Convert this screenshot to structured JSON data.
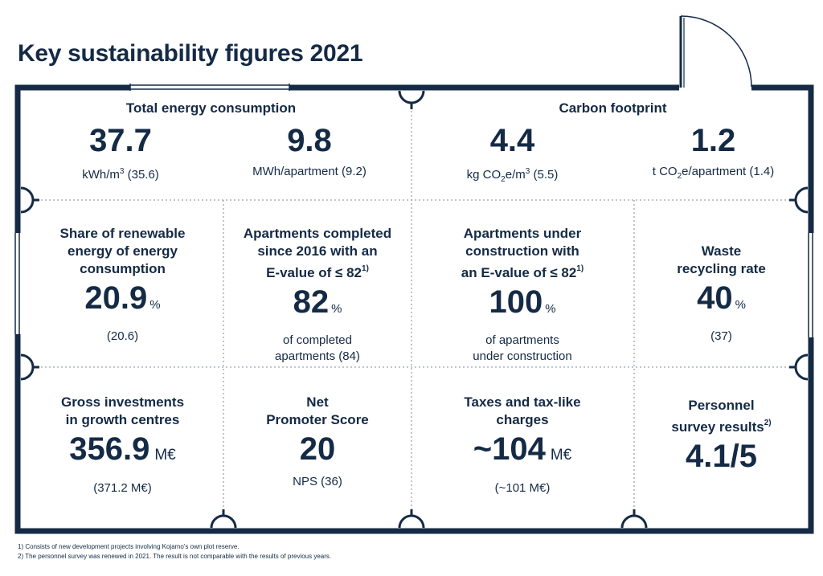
{
  "title": "Key sustainability figures 2021",
  "energy": {
    "heading": "Total energy consumption",
    "m2_value": "37.7",
    "m2_unit_prefix": "kWh/m",
    "m2_unit_sup": "3",
    "m2_prev": "(35.6)",
    "apt_value": "9.8",
    "apt_unit": "MWh/apartment (9.2)"
  },
  "carbon": {
    "heading": "Carbon footprint",
    "m3_value": "4.4",
    "m3_unit_prefix": "kg CO",
    "m3_unit_sub": "2",
    "m3_unit_mid": "e/m",
    "m3_unit_sup": "3",
    "m3_prev": "(5.5)",
    "apt_value": "1.2",
    "apt_unit_prefix": "t CO",
    "apt_unit_sub": "2",
    "apt_unit_suffix": "e/apartment (1.4)"
  },
  "renewable": {
    "heading_line1": "Share of renewable",
    "heading_line2": "energy of energy",
    "heading_line3": "consumption",
    "value": "20.9",
    "unit": "%",
    "prev": "(20.6)"
  },
  "completed": {
    "heading_line1": "Apartments completed",
    "heading_line2": "since 2016 with an",
    "heading_line3": "E-value of ≤ 82",
    "footnote_mark": "1)",
    "value": "82",
    "unit": "%",
    "sub_line1": "of completed",
    "sub_line2": "apartments (84)"
  },
  "under_construction": {
    "heading_line1": "Apartments under",
    "heading_line2": "construction with",
    "heading_line3": "an E-value of ≤ 82",
    "footnote_mark": "1)",
    "value": "100",
    "unit": "%",
    "sub_line1": "of apartments",
    "sub_line2": "under construction"
  },
  "waste": {
    "heading_line1": "Waste",
    "heading_line2": "recycling rate",
    "value": "40",
    "unit": "%",
    "prev": "(37)"
  },
  "investments": {
    "heading_line1": "Gross investments",
    "heading_line2": "in growth centres",
    "value": "356.9",
    "unit": "M€",
    "prev": "(371.2 M€)"
  },
  "nps": {
    "heading_line1": "Net",
    "heading_line2": "Promoter Score",
    "value": "20",
    "prev": "NPS (36)"
  },
  "taxes": {
    "heading_line1": "Taxes and tax-like",
    "heading_line2": "charges",
    "value": "~104",
    "unit": "M€",
    "prev": "(~101 M€)"
  },
  "personnel": {
    "heading_line1": "Personnel",
    "heading_line2": "survey results",
    "footnote_mark": "2)",
    "value": "4.1/5"
  },
  "footnotes": {
    "note1": "1) Consists of new development projects involving Kojamo’s own plot reserve.",
    "note2": "2) The personnel survey was renewed in 2021. The result is not comparable with the results of previous years."
  },
  "colors": {
    "navy": "#142a45",
    "dotted": "#9aa3ad"
  }
}
